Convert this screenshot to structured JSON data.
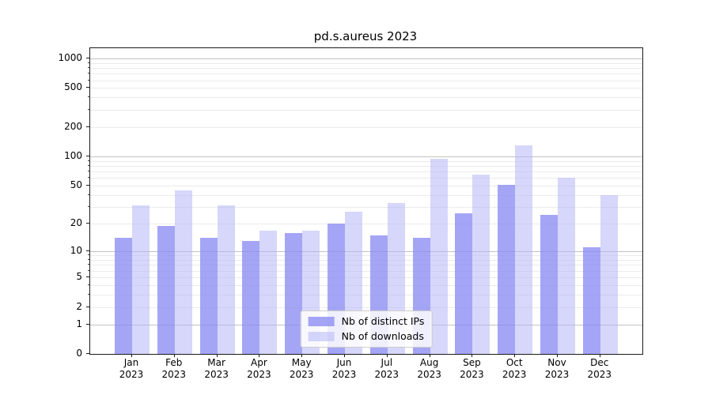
{
  "title": "pd.s.aureus 2023",
  "chart_data": {
    "type": "bar",
    "title": "pd.s.aureus 2023",
    "y_scale": "log1p",
    "ylim": [
      0,
      1250
    ],
    "grid": true,
    "legend_position": "lower center",
    "y_ticks": [
      0,
      1,
      2,
      5,
      10,
      20,
      50,
      100,
      200,
      500,
      1000
    ],
    "x_ticks": [
      {
        "month": "Jan",
        "year": "2023"
      },
      {
        "month": "Feb",
        "year": "2023"
      },
      {
        "month": "Mar",
        "year": "2023"
      },
      {
        "month": "Apr",
        "year": "2023"
      },
      {
        "month": "May",
        "year": "2023"
      },
      {
        "month": "Jun",
        "year": "2023"
      },
      {
        "month": "Jul",
        "year": "2023"
      },
      {
        "month": "Aug",
        "year": "2023"
      },
      {
        "month": "Sep",
        "year": "2023"
      },
      {
        "month": "Oct",
        "year": "2023"
      },
      {
        "month": "Nov",
        "year": "2023"
      },
      {
        "month": "Dec",
        "year": "2023"
      }
    ],
    "series": [
      {
        "name": "Nb of distinct IPs",
        "color": "rgba(140,140,244,0.78)",
        "values": [
          14,
          19,
          14,
          13,
          16,
          20,
          15,
          14,
          26,
          51,
          25,
          11
        ]
      },
      {
        "name": "Nb of downloads",
        "color": "rgba(180,182,246,0.55)",
        "values": [
          31,
          45,
          31,
          17,
          17,
          27,
          33,
          95,
          65,
          130,
          60,
          40
        ]
      }
    ]
  },
  "colors": {
    "distinct_ips_bar": "#a6a6f4",
    "downloads_bar": "#d7d8fa",
    "grid_major": "#c2c2c2",
    "grid_minor": "#ebebeb",
    "spine": "#1a1a1a"
  }
}
